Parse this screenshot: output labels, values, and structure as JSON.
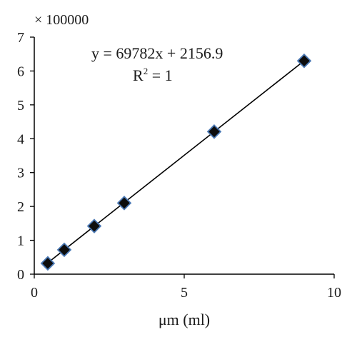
{
  "chart_data": {
    "type": "scatter",
    "x_axis": {
      "label": "μm (ml)",
      "min": 0,
      "max": 10,
      "ticks": [
        "0",
        "5",
        "10"
      ]
    },
    "y_axis": {
      "multiplier_label": "× 100000",
      "min": 0,
      "max": 7,
      "ticks": [
        "0",
        "1",
        "2",
        "3",
        "4",
        "5",
        "6",
        "7"
      ]
    },
    "series": [
      {
        "points": [
          {
            "x": 0.45,
            "y": 0.32
          },
          {
            "x": 1,
            "y": 0.72
          },
          {
            "x": 2,
            "y": 1.42
          },
          {
            "x": 3,
            "y": 2.1
          },
          {
            "x": 6,
            "y": 4.21
          },
          {
            "x": 9,
            "y": 6.3
          }
        ],
        "marker": "diamond",
        "marker_fill": "#0d0d0d",
        "marker_stroke": "#4a78b4"
      }
    ],
    "trendline": {
      "slope": 69782,
      "intercept": 2156.9,
      "from_x": 0.45,
      "to_x": 9,
      "color": "#000000"
    },
    "annotations": {
      "equation": "y = 69782x + 2156.9",
      "r2_base": "R",
      "r2_sup": "2",
      "r2_rest": " = 1"
    },
    "grid": false,
    "legend": "none"
  }
}
